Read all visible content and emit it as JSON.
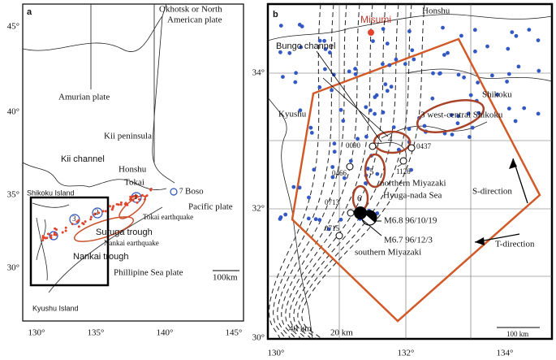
{
  "panel_a": {
    "label": "a",
    "lon_ticks": [
      "130°",
      "135°",
      "140°",
      "145°"
    ],
    "lat_ticks": [
      "45°",
      "40°",
      "35°",
      "30°"
    ],
    "labels": [
      "Okhotsk or North",
      "American plate",
      "Amurian plate",
      "Kii peninsula",
      "Kii channel",
      "Honshu",
      "Tokai",
      "Shikoku Island",
      "7",
      "Boso",
      "Pacific plate",
      "Tokai earthquake",
      "Suruga trough",
      "Nankai earthquake",
      "Nankai trough",
      "Phillipine Sea plate",
      "Kyushu Island",
      "100km",
      "1",
      "2",
      "3"
    ]
  },
  "panel_b": {
    "label": "b",
    "lon_ticks": [
      "130°",
      "132°",
      "134°"
    ],
    "lat_ticks": [
      "34°",
      "32°",
      "30°"
    ],
    "labels": [
      "Misumi",
      "Honshu",
      "Bungo channel",
      "Shikoku",
      "Kyushu",
      "3 west-central Shikoku",
      "4",
      "0090",
      "0437",
      "0466",
      "1126",
      "5",
      "northern Miyazaki",
      "6",
      "0713",
      "Hyuga-nada Sea",
      "S-direction",
      "0715",
      "M6.8 96/10/19",
      "M6.7 96/12/3",
      "southern Miyazaki",
      "T-direction",
      "40 km",
      "20 km",
      "100 km"
    ]
  }
}
